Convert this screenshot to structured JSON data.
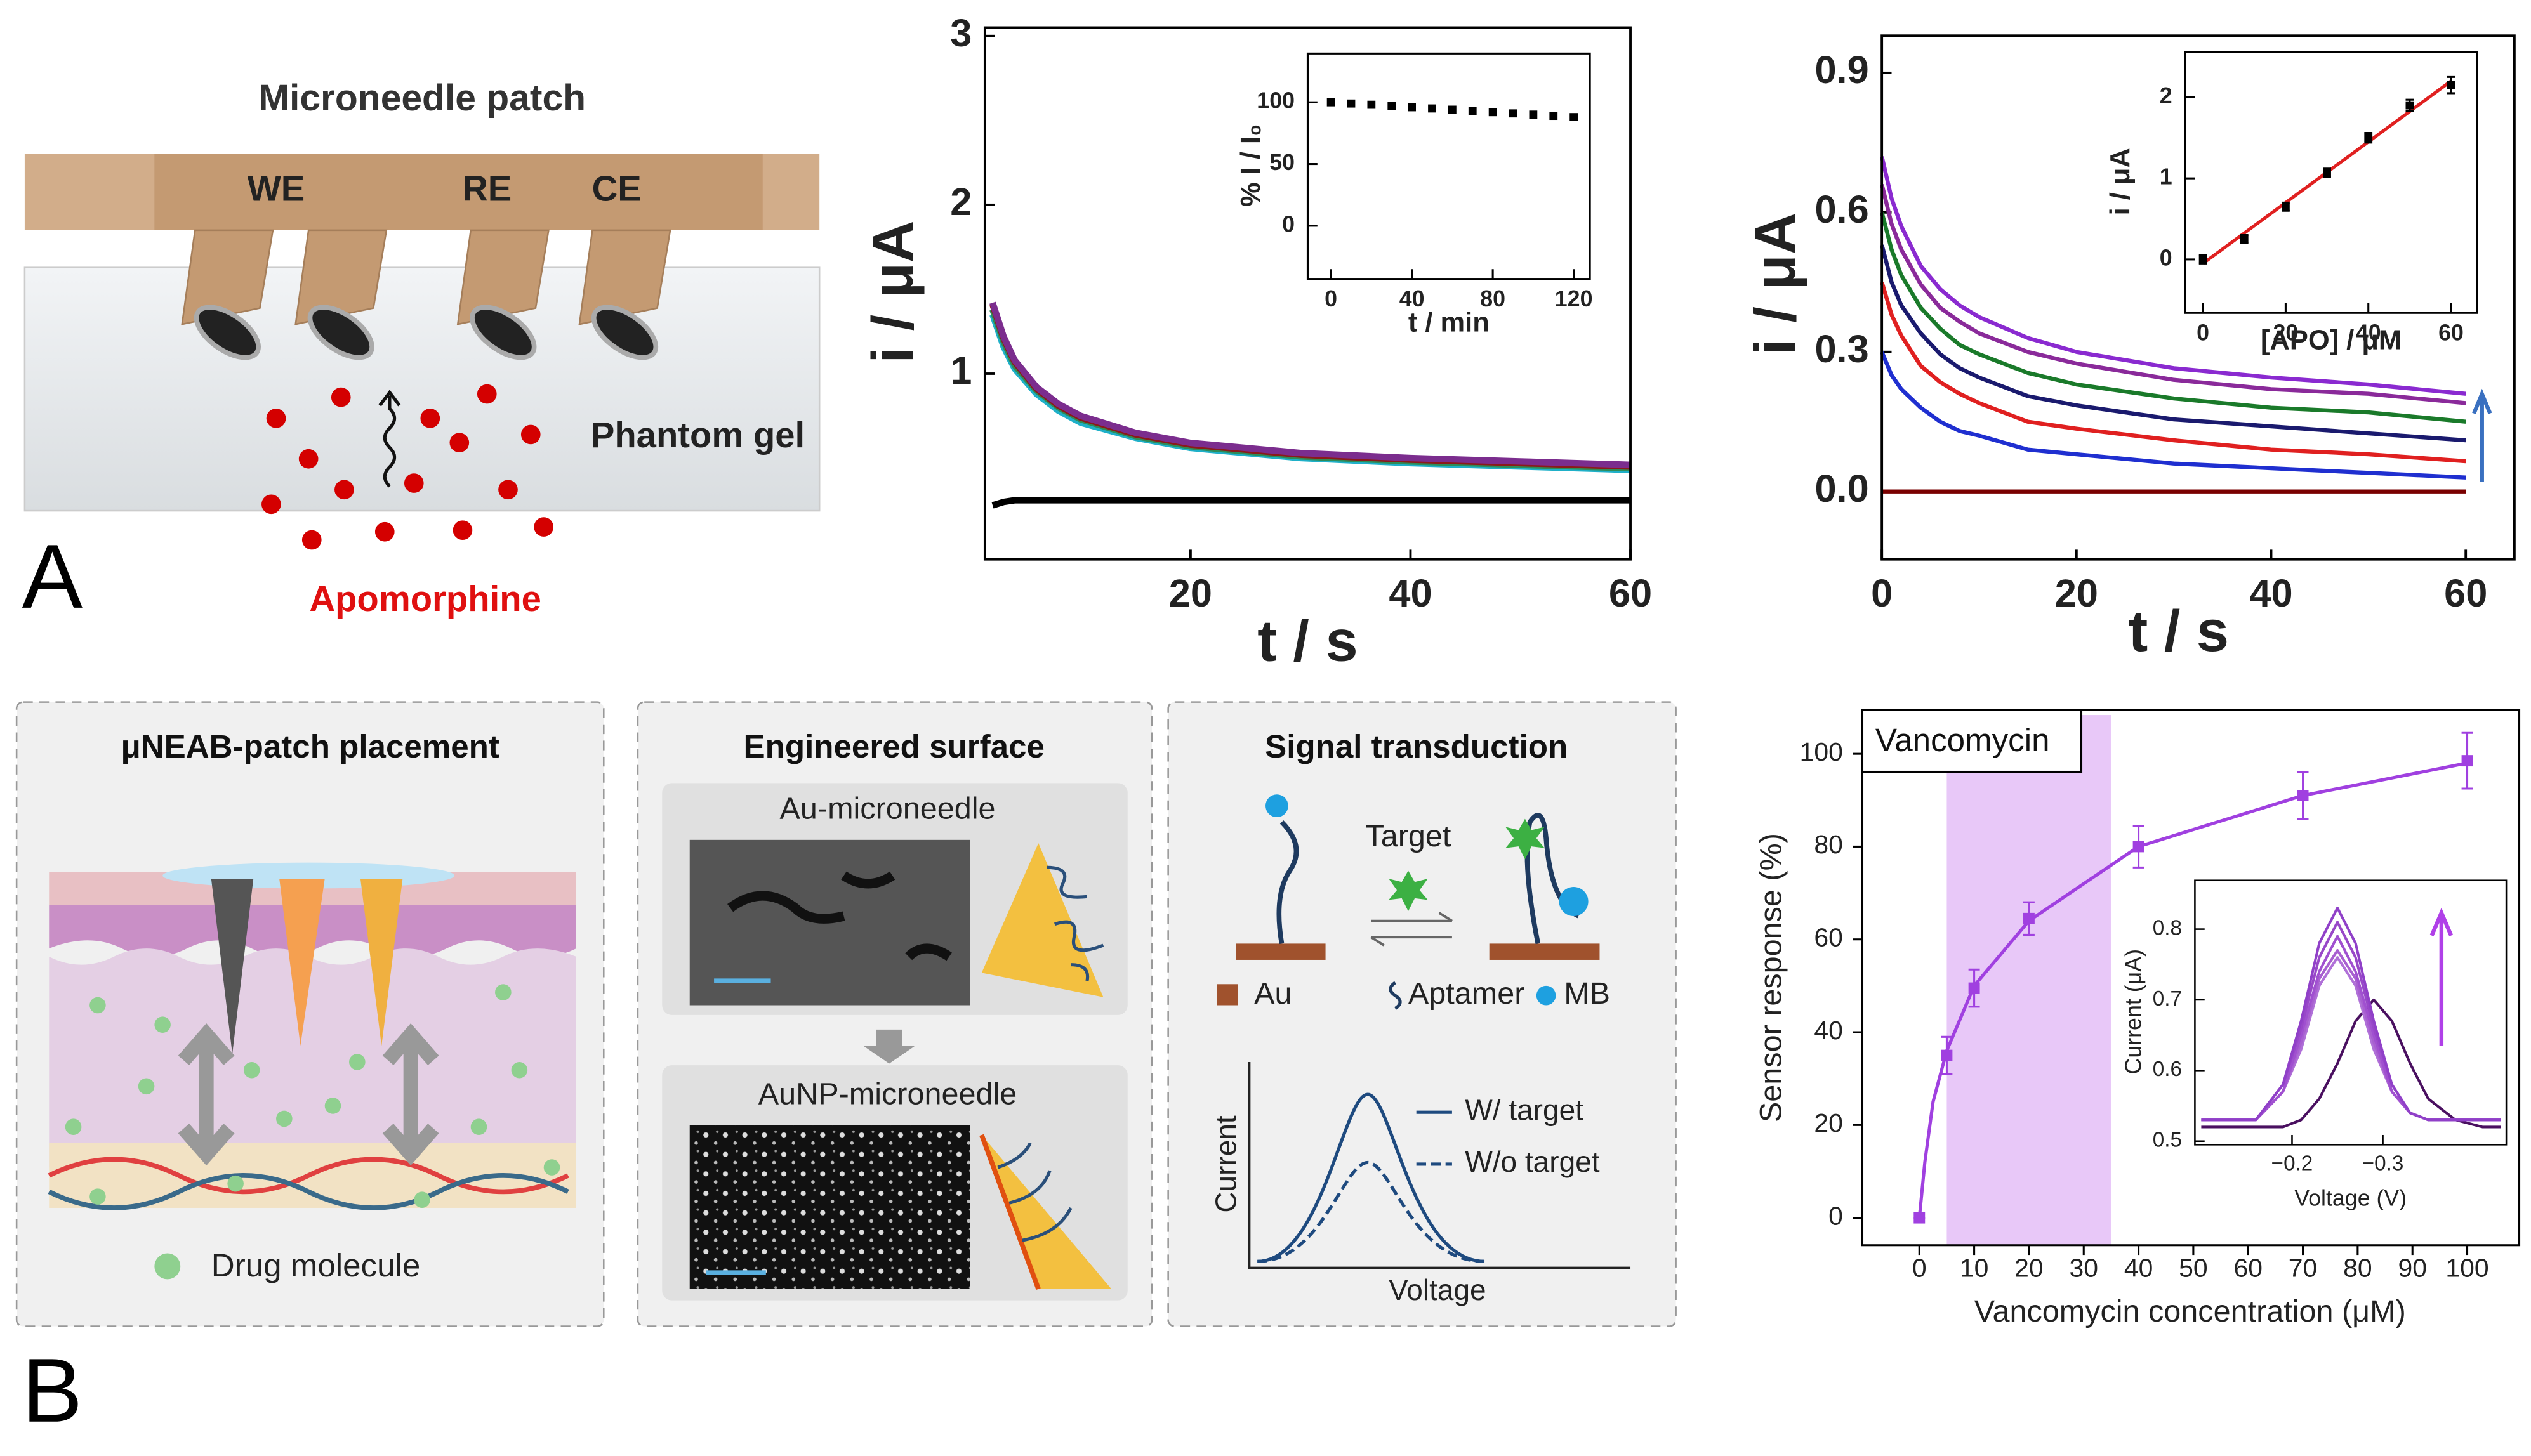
{
  "panel_labels": [
    "A",
    "B"
  ],
  "diagrams": {
    "patch": {
      "title": "Microneedle patch",
      "electrodes": [
        "WE",
        "RE",
        "CE"
      ],
      "gel": "Phantom gel",
      "drug": "Apomorphine"
    },
    "placement": {
      "title": "μNEAB-patch placement",
      "legend": "Drug molecule"
    },
    "surface": {
      "title": "Engineered surface",
      "top": "Au-microneedle",
      "bottom": "AuNP-microneedle"
    },
    "signal": {
      "title": "Signal transduction",
      "target": "Target",
      "legend": [
        "Au",
        "Aptamer",
        "MB"
      ],
      "y_label": "Current",
      "x_label": "Voltage",
      "curves": [
        "W/ target",
        "W/o target"
      ]
    }
  },
  "chart_data": [
    {
      "type": "line",
      "x_label": "t / s",
      "y_label": "i / μA",
      "x": [
        2,
        3,
        4,
        6,
        8,
        10,
        15,
        20,
        30,
        40,
        50,
        60
      ],
      "series": [
        {
          "color": "#1fb0c8",
          "values": [
            1.35,
            1.16,
            1.03,
            0.88,
            0.78,
            0.71,
            0.62,
            0.56,
            0.5,
            0.47,
            0.45,
            0.43
          ]
        },
        {
          "color": "#2e8b57",
          "values": [
            1.38,
            1.19,
            1.05,
            0.9,
            0.8,
            0.73,
            0.63,
            0.57,
            0.51,
            0.48,
            0.46,
            0.44
          ]
        },
        {
          "color": "#8b1a1a",
          "values": [
            1.41,
            1.21,
            1.07,
            0.91,
            0.81,
            0.74,
            0.64,
            0.58,
            0.52,
            0.49,
            0.47,
            0.45
          ]
        },
        {
          "color": "#7b2d8e",
          "values": [
            1.42,
            1.22,
            1.08,
            0.92,
            0.82,
            0.75,
            0.65,
            0.59,
            0.53,
            0.5,
            0.48,
            0.46
          ]
        },
        {
          "color": "#000000",
          "values": [
            0.22,
            0.24,
            0.25,
            0.25,
            0.25,
            0.25,
            0.25,
            0.25,
            0.25,
            0.25,
            0.25,
            0.25
          ]
        }
      ],
      "xlim": [
        1.3,
        60
      ],
      "xticks": [
        20,
        40,
        60
      ],
      "ylim": [
        -0.1,
        3.05
      ],
      "yticks": [
        1,
        2,
        3
      ]
    },
    {
      "type": "scatter",
      "x_label": "t / min",
      "y_label": "% I / I₀",
      "color": "#000000",
      "x": [
        0,
        10,
        20,
        30,
        40,
        50,
        60,
        70,
        80,
        90,
        100,
        110,
        120
      ],
      "values": [
        100,
        99,
        98,
        97,
        96,
        95,
        94,
        93,
        92,
        91,
        90,
        89,
        88
      ],
      "xlim": [
        -11.5,
        128
      ],
      "xticks": [
        0,
        40,
        80,
        120
      ],
      "ylim": [
        -43,
        139.5
      ],
      "yticks": [
        0,
        50,
        100
      ]
    },
    {
      "type": "line",
      "x_label": "t / s",
      "y_label": "i / μA",
      "x": [
        0,
        1,
        2,
        4,
        6,
        8,
        10,
        15,
        20,
        30,
        40,
        50,
        60
      ],
      "series": [
        {
          "color": "#7a0000",
          "values": [
            0,
            0,
            0,
            0,
            0,
            0,
            0,
            0,
            0,
            0,
            0,
            0,
            0
          ]
        },
        {
          "color": "#1f2fd0",
          "values": [
            0.3,
            0.25,
            0.22,
            0.18,
            0.15,
            0.13,
            0.12,
            0.09,
            0.08,
            0.06,
            0.05,
            0.04,
            0.03
          ]
        },
        {
          "color": "#e02020",
          "values": [
            0.45,
            0.38,
            0.335,
            0.27,
            0.235,
            0.21,
            0.19,
            0.15,
            0.135,
            0.11,
            0.09,
            0.08,
            0.065
          ]
        },
        {
          "color": "#1a1a6e",
          "values": [
            0.53,
            0.45,
            0.4,
            0.34,
            0.295,
            0.265,
            0.245,
            0.205,
            0.185,
            0.155,
            0.14,
            0.125,
            0.11
          ]
        },
        {
          "color": "#1a7a2a",
          "values": [
            0.6,
            0.52,
            0.465,
            0.395,
            0.35,
            0.315,
            0.295,
            0.255,
            0.23,
            0.2,
            0.18,
            0.17,
            0.15
          ]
        },
        {
          "color": "#8a2a9a",
          "values": [
            0.66,
            0.575,
            0.52,
            0.445,
            0.395,
            0.365,
            0.34,
            0.3,
            0.275,
            0.24,
            0.22,
            0.21,
            0.19
          ]
        },
        {
          "color": "#8a2ad0",
          "values": [
            0.72,
            0.63,
            0.57,
            0.485,
            0.435,
            0.4,
            0.375,
            0.33,
            0.3,
            0.265,
            0.245,
            0.23,
            0.21
          ]
        }
      ],
      "xlim": [
        0,
        65
      ],
      "xticks": [
        0,
        20,
        40,
        60
      ],
      "ylim": [
        -0.146,
        0.98
      ],
      "yticks": [
        {
          "value": 0,
          "label": "0.0"
        },
        0.3,
        0.6,
        0.9
      ]
    },
    {
      "type": "scatter",
      "x_label": "[APO] / μM",
      "y_label": "i / μA",
      "color": "#000000",
      "x": [
        0,
        10,
        20,
        30,
        40,
        50,
        60
      ],
      "values": [
        0,
        0.25,
        0.65,
        1.07,
        1.5,
        1.9,
        2.15
      ],
      "errors": [
        0.05,
        0.05,
        0.05,
        0.05,
        0.06,
        0.07,
        0.1
      ],
      "fit": {
        "color": "#e02020",
        "x": [
          0,
          60
        ],
        "values": [
          -0.05,
          2.2
        ]
      },
      "xlim": [
        -4.3,
        66.3
      ],
      "xticks": [
        0,
        20,
        40,
        60
      ],
      "ylim": [
        -0.66,
        2.56
      ],
      "yticks": [
        0,
        1,
        2
      ]
    },
    {
      "type": "scatter",
      "annotation": "Vancomycin",
      "x_label": "Vancomycin concentration (μM)",
      "y_label": "Sensor response (%)",
      "color": "#a040e0",
      "x": [
        0,
        5,
        10,
        20,
        40,
        70,
        100
      ],
      "values": [
        0,
        35,
        49.5,
        64.5,
        80,
        91,
        98.5
      ],
      "errors": [
        0,
        4,
        4,
        3.5,
        4.5,
        5,
        6
      ],
      "fit": {
        "color": "#a040e0",
        "x": [
          0,
          1,
          2.5,
          5,
          10,
          20,
          40,
          70,
          100
        ],
        "values": [
          0,
          12,
          25,
          36,
          50,
          64,
          80,
          91,
          98
        ]
      },
      "shaded_x": [
        5,
        35
      ],
      "shade_color": "#e8c8f8",
      "xlim": [
        -10.4,
        109.5
      ],
      "xticks": [
        0,
        10,
        20,
        30,
        40,
        50,
        60,
        70,
        80,
        90,
        100
      ],
      "ylim": [
        -5.9,
        109.4
      ],
      "yticks": [
        0,
        20,
        40,
        60,
        80,
        100
      ]
    },
    {
      "type": "line",
      "x_label": "Voltage (V)",
      "y_label": "Current (μA)",
      "x": [
        -0.1,
        -0.13,
        -0.16,
        -0.19,
        -0.21,
        -0.23,
        -0.25,
        -0.27,
        -0.29,
        -0.31,
        -0.33,
        -0.35,
        -0.38,
        -0.41,
        -0.43
      ],
      "series": [
        {
          "color": "#4a1060",
          "values": [
            0.52,
            0.52,
            0.52,
            0.52,
            0.53,
            0.56,
            0.61,
            0.67,
            0.7,
            0.67,
            0.61,
            0.56,
            0.53,
            0.52,
            0.52
          ]
        },
        {
          "color": "#b070d8",
          "values": [
            0.53,
            0.53,
            0.53,
            0.57,
            0.63,
            0.72,
            0.76,
            0.72,
            0.63,
            0.57,
            0.54,
            0.53,
            0.53,
            0.53,
            0.53
          ]
        },
        {
          "color": "#a860d0",
          "values": [
            0.53,
            0.53,
            0.53,
            0.57,
            0.64,
            0.73,
            0.77,
            0.73,
            0.64,
            0.57,
            0.54,
            0.53,
            0.53,
            0.53,
            0.53
          ]
        },
        {
          "color": "#a050d0",
          "values": [
            0.53,
            0.53,
            0.53,
            0.57,
            0.65,
            0.74,
            0.79,
            0.74,
            0.65,
            0.57,
            0.54,
            0.53,
            0.53,
            0.53,
            0.53
          ]
        },
        {
          "color": "#9848c8",
          "values": [
            0.53,
            0.53,
            0.53,
            0.58,
            0.66,
            0.76,
            0.81,
            0.76,
            0.66,
            0.58,
            0.54,
            0.53,
            0.53,
            0.53,
            0.53
          ]
        },
        {
          "color": "#9040c8",
          "values": [
            0.53,
            0.53,
            0.53,
            0.58,
            0.67,
            0.78,
            0.83,
            0.78,
            0.67,
            0.58,
            0.54,
            0.53,
            0.53,
            0.53,
            0.53
          ]
        }
      ],
      "xlim": [
        -0.093,
        -0.436
      ],
      "xticks": [
        {
          "value": -0.2,
          "label": "−0.2"
        },
        {
          "value": -0.3,
          "label": "−0.3"
        }
      ],
      "ylim": [
        0.495,
        0.869
      ],
      "yticks": [
        0.5,
        0.6,
        0.7,
        0.8
      ]
    }
  ]
}
